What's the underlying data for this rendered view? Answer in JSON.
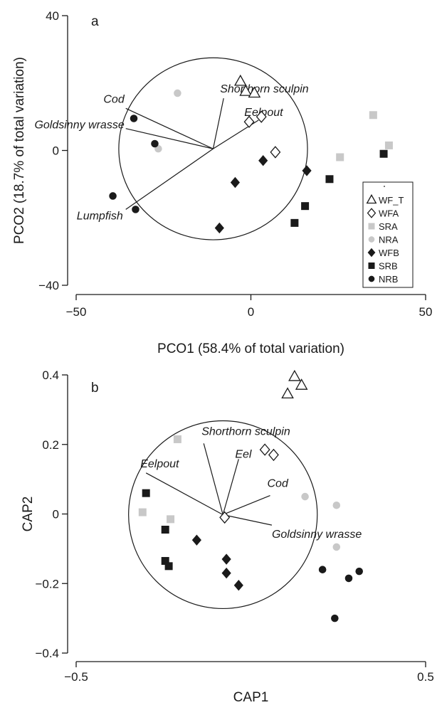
{
  "chart_data": [
    {
      "panel": "a",
      "type": "scatter",
      "xlabel": "PCO1 (58.4% of total variation)",
      "ylabel": "PCO2 (18.7% of total variation)",
      "xlim": [
        -50,
        50
      ],
      "ylim": [
        -40,
        40
      ],
      "xticks": [
        -50,
        0,
        50
      ],
      "yticks": [
        -40,
        0,
        40
      ],
      "circle": {
        "cx": -10.8,
        "cy": 0.5,
        "r": 27
      },
      "vectors": [
        {
          "name": "Cod",
          "x": -25,
          "y": 12,
          "label": "Cod"
        },
        {
          "name": "Goldsinny wrasse",
          "x": -25,
          "y": 6,
          "label": "Goldsinny wrasse"
        },
        {
          "name": "Shorthorn sculpin",
          "x": 3,
          "y": 15,
          "label": "Shorthorn sculpin"
        },
        {
          "name": "Eelpout",
          "x": 13,
          "y": 8.5,
          "label": "Eelpout"
        },
        {
          "name": "Lumpfish",
          "x": -25,
          "y": -18,
          "label": "Lumpfish"
        }
      ],
      "legend": {
        "position": "right",
        "entries": [
          {
            "label": "WF_T",
            "marker": "triangle-open",
            "color": "#1a1a1a"
          },
          {
            "label": "WFA",
            "marker": "diamond-open",
            "color": "#1a1a1a"
          },
          {
            "label": "SRA",
            "marker": "square",
            "color": "#c8c8c8"
          },
          {
            "label": "NRA",
            "marker": "circle",
            "color": "#c8c8c8"
          },
          {
            "label": "WFB",
            "marker": "diamond",
            "color": "#1a1a1a"
          },
          {
            "label": "SRB",
            "marker": "square",
            "color": "#1a1a1a"
          },
          {
            "label": "NRB",
            "marker": "circle",
            "color": "#1a1a1a"
          }
        ]
      },
      "series": [
        {
          "name": "WF_T",
          "points": [
            [
              -3,
              20.5
            ],
            [
              -1.5,
              17.5
            ],
            [
              1,
              17
            ]
          ]
        },
        {
          "name": "WFA",
          "points": [
            [
              -0.5,
              8.5
            ],
            [
              3,
              10
            ],
            [
              7,
              -0.5
            ]
          ]
        },
        {
          "name": "SRA",
          "points": [
            [
              35,
              10.5
            ],
            [
              39.5,
              1.5
            ],
            [
              25.5,
              -2
            ]
          ]
        },
        {
          "name": "NRA",
          "points": [
            [
              -21,
              17
            ],
            [
              -26.5,
              0.5
            ]
          ]
        },
        {
          "name": "WFB",
          "points": [
            [
              3.5,
              -3
            ],
            [
              16,
              -6
            ],
            [
              -4.5,
              -9.5
            ],
            [
              -9,
              -23
            ]
          ]
        },
        {
          "name": "SRB",
          "points": [
            [
              38,
              -1
            ],
            [
              22.5,
              -8.5
            ],
            [
              15.5,
              -16.5
            ],
            [
              12.5,
              -21.5
            ]
          ]
        },
        {
          "name": "NRB",
          "points": [
            [
              -33.5,
              9.5
            ],
            [
              -27.5,
              2
            ],
            [
              -39.5,
              -13.5
            ],
            [
              -33,
              -17.5
            ]
          ]
        }
      ]
    },
    {
      "panel": "b",
      "type": "scatter",
      "xlabel": "CAP1",
      "ylabel": "CAP2",
      "xlim": [
        -0.5,
        0.5
      ],
      "ylim": [
        -0.4,
        0.4
      ],
      "xticks": [
        -0.5,
        0.5
      ],
      "yticks": [
        -0.4,
        -0.2,
        0,
        0.2,
        0.4
      ],
      "circle": {
        "cx": -0.08,
        "cy": -0.002,
        "r": 0.27
      },
      "vectors": [
        {
          "name": "Eelpout",
          "x": -0.22,
          "y": 0.12,
          "label": "Eelpout"
        },
        {
          "name": "Shorthorn sculpin",
          "x": -0.055,
          "y": 0.205,
          "label": "Shorthorn sculpin"
        },
        {
          "name": "Eel",
          "x": 0.045,
          "y": 0.16,
          "label": "Eel"
        },
        {
          "name": "Cod",
          "x": 0.135,
          "y": 0.055,
          "label": "Cod"
        },
        {
          "name": "Goldsinny wrasse",
          "x": 0.14,
          "y": -0.03,
          "label": "Goldsinny wrasse"
        }
      ],
      "series": [
        {
          "name": "WF_T",
          "points": [
            [
              0.125,
              0.395
            ],
            [
              0.145,
              0.37
            ],
            [
              0.105,
              0.345
            ]
          ]
        },
        {
          "name": "WFA",
          "points": [
            [
              0.04,
              0.185
            ],
            [
              0.065,
              0.17
            ],
            [
              -0.075,
              -0.01
            ]
          ]
        },
        {
          "name": "SRA",
          "points": [
            [
              -0.21,
              0.215
            ],
            [
              -0.31,
              0.005
            ],
            [
              -0.23,
              -0.015
            ]
          ]
        },
        {
          "name": "NRA",
          "points": [
            [
              0.155,
              0.05
            ],
            [
              0.245,
              0.025
            ],
            [
              0.245,
              -0.095
            ]
          ]
        },
        {
          "name": "WFB",
          "points": [
            [
              -0.155,
              -0.075
            ],
            [
              -0.07,
              -0.13
            ],
            [
              -0.07,
              -0.17
            ],
            [
              -0.035,
              -0.205
            ]
          ]
        },
        {
          "name": "SRB",
          "points": [
            [
              -0.3,
              0.06
            ],
            [
              -0.245,
              -0.045
            ],
            [
              -0.245,
              -0.135
            ],
            [
              -0.235,
              -0.15
            ]
          ]
        },
        {
          "name": "NRB",
          "points": [
            [
              0.205,
              -0.16
            ],
            [
              0.28,
              -0.185
            ],
            [
              0.31,
              -0.165
            ],
            [
              0.24,
              -0.3
            ]
          ]
        }
      ]
    }
  ]
}
